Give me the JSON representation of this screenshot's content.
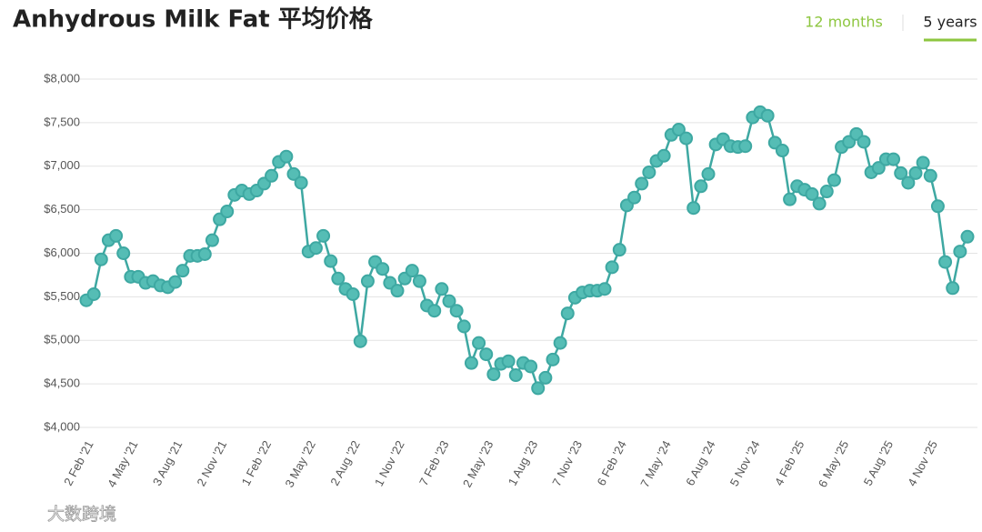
{
  "chart_data": {
    "type": "line",
    "title": "Anhydrous Milk Fat 平均价格",
    "color": "#3ea8a2",
    "marker_fill": "#55bdb5",
    "grid": true,
    "ylim": [
      4000,
      8000
    ],
    "yticks": [
      {
        "value": 4000,
        "label": "$4,000"
      },
      {
        "value": 4500,
        "label": "$4,500"
      },
      {
        "value": 5000,
        "label": "$5,000"
      },
      {
        "value": 5500,
        "label": "$5,500"
      },
      {
        "value": 6000,
        "label": "$6,000"
      },
      {
        "value": 6500,
        "label": "$6,500"
      },
      {
        "value": 7000,
        "label": "$7,000"
      },
      {
        "value": 7500,
        "label": "$7,500"
      },
      {
        "value": 8000,
        "label": "$8,000"
      }
    ],
    "categories": [
      "2 Feb '21",
      null,
      null,
      null,
      null,
      null,
      "4 May '21",
      null,
      null,
      null,
      null,
      null,
      "3 Aug '21",
      null,
      null,
      null,
      null,
      null,
      "2 Nov '21",
      null,
      null,
      null,
      null,
      null,
      "1 Feb '22",
      null,
      null,
      null,
      null,
      null,
      "3 May '22",
      null,
      null,
      null,
      null,
      null,
      "2 Aug '22",
      null,
      null,
      null,
      null,
      null,
      "1 Nov '22",
      null,
      null,
      null,
      null,
      null,
      "7 Feb '23",
      null,
      null,
      null,
      null,
      null,
      "2 May '23",
      null,
      null,
      null,
      null,
      null,
      "1 Aug '23",
      null,
      null,
      null,
      null,
      null,
      "7 Nov '23",
      null,
      null,
      null,
      null,
      null,
      "6 Feb '24",
      null,
      null,
      null,
      null,
      null,
      "7 May '24",
      null,
      null,
      null,
      null,
      null,
      "6 Aug '24",
      null,
      null,
      null,
      null,
      null,
      "5 Nov '24",
      null,
      null,
      null,
      null,
      null,
      "4 Feb '25",
      null,
      null,
      null,
      null,
      null,
      "6 May '25",
      null,
      null,
      null,
      null,
      null,
      "5 Aug '25",
      null,
      null,
      null,
      null,
      null,
      "4 Nov '25",
      null,
      null,
      null,
      null,
      null
    ],
    "values": [
      5460,
      5530,
      5930,
      6150,
      6200,
      6000,
      5730,
      5730,
      5660,
      5680,
      5630,
      5610,
      5670,
      5800,
      5970,
      5970,
      5990,
      6150,
      6390,
      6480,
      6670,
      6720,
      6680,
      6720,
      6800,
      6890,
      7050,
      7110,
      6910,
      6810,
      6020,
      6060,
      6200,
      5910,
      5710,
      5590,
      5530,
      4990,
      5680,
      5900,
      5820,
      5660,
      5570,
      5710,
      5800,
      5680,
      5400,
      5340,
      5590,
      5450,
      5340,
      5160,
      4740,
      4970,
      4840,
      4610,
      4730,
      4760,
      4600,
      4740,
      4700,
      4450,
      4570,
      4780,
      4970,
      5310,
      5490,
      5550,
      5570,
      5570,
      5590,
      5840,
      6040,
      6550,
      6640,
      6800,
      6930,
      7060,
      7120,
      7360,
      7420,
      7320,
      6520,
      6770,
      6910,
      7250,
      7310,
      7230,
      7220,
      7230,
      7560,
      7620,
      7580,
      7270,
      7180,
      6620,
      6770,
      6730,
      6680,
      6570,
      6710,
      6840,
      7220,
      7280,
      7370,
      7280,
      6930,
      6980,
      7080,
      7080,
      6920,
      6810,
      6920,
      7040,
      6890,
      6540,
      5900,
      5600,
      6020,
      6190
    ]
  },
  "tabs": [
    "12 months",
    "5 years"
  ],
  "watermark": "大数跨境"
}
